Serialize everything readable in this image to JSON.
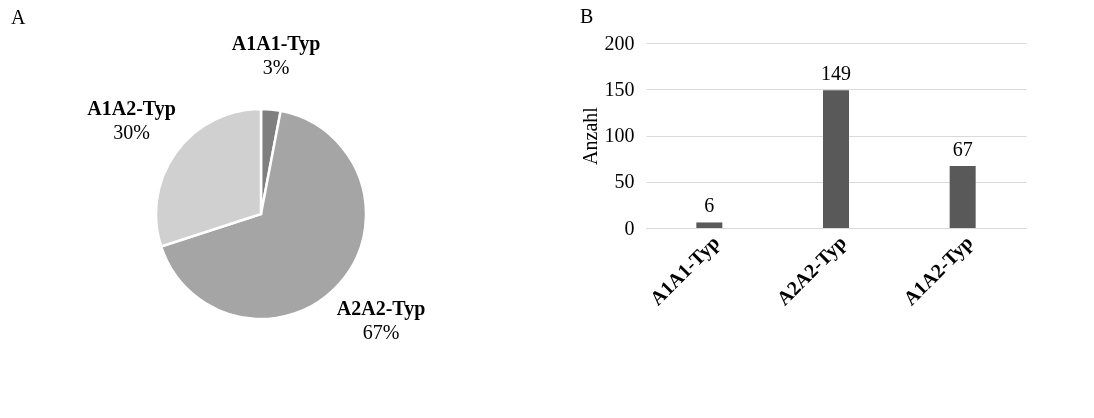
{
  "chart_data": [
    {
      "type": "pie",
      "title": "A",
      "categories": [
        "A1A1-Typ",
        "A2A2-Typ",
        "A1A2-Typ"
      ],
      "values": [
        3,
        67,
        30
      ],
      "value_labels": [
        "3%",
        "67%",
        "30%"
      ],
      "colors": [
        "#7f7f7f",
        "#a5a5a5",
        "#d0d0d0"
      ]
    },
    {
      "type": "bar",
      "title": "B",
      "categories": [
        "A1A1-Typ",
        "A2A2-Typ",
        "A1A2-Typ"
      ],
      "values": [
        6,
        149,
        67
      ],
      "color": "#595959",
      "ylabel": "Anzahl",
      "ylim": [
        0,
        200
      ],
      "yticks": [
        0,
        50,
        100,
        150,
        200
      ],
      "grid": "y",
      "data_labels": true
    }
  ]
}
